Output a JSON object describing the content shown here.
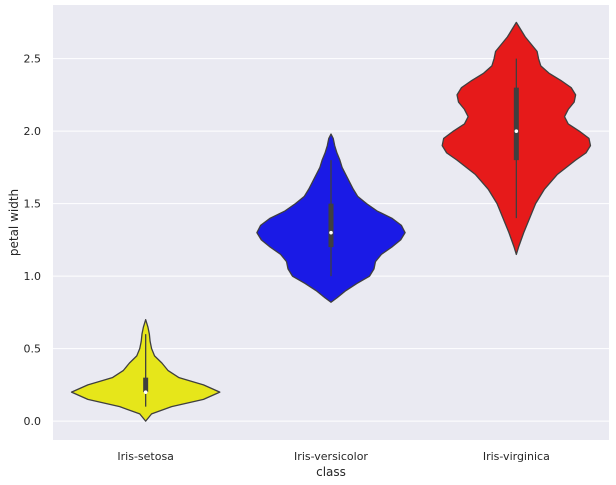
{
  "chart_data": {
    "type": "violin",
    "xlabel": "class",
    "ylabel": "petal width",
    "ylim": [
      -0.13,
      2.87
    ],
    "yticks": [
      0.0,
      0.5,
      1.0,
      1.5,
      2.0,
      2.5
    ],
    "ytick_labels": [
      "0.0",
      "0.5",
      "1.0",
      "1.5",
      "2.0",
      "2.5"
    ],
    "grid": true,
    "background_color": "#eaeaf2",
    "categories": [
      "Iris-setosa",
      "Iris-versicolor",
      "Iris-virginica"
    ],
    "series": [
      {
        "category": "Iris-setosa",
        "color": "#e6e61a",
        "min": 0.1,
        "q1": 0.2,
        "median": 0.2,
        "q3": 0.3,
        "max": 0.6,
        "density": [
          [
            0.0,
            0.0
          ],
          [
            0.05,
            0.08
          ],
          [
            0.1,
            0.35
          ],
          [
            0.15,
            0.78
          ],
          [
            0.2,
            1.0
          ],
          [
            0.25,
            0.78
          ],
          [
            0.3,
            0.45
          ],
          [
            0.35,
            0.3
          ],
          [
            0.4,
            0.22
          ],
          [
            0.45,
            0.12
          ],
          [
            0.5,
            0.08
          ],
          [
            0.55,
            0.06
          ],
          [
            0.6,
            0.05
          ],
          [
            0.65,
            0.03
          ],
          [
            0.7,
            0.0
          ]
        ]
      },
      {
        "category": "Iris-versicolor",
        "color": "#1a1ae6",
        "min": 1.0,
        "q1": 1.2,
        "median": 1.3,
        "q3": 1.5,
        "max": 1.8,
        "density": [
          [
            0.82,
            0.0
          ],
          [
            0.85,
            0.08
          ],
          [
            0.9,
            0.2
          ],
          [
            0.95,
            0.35
          ],
          [
            1.0,
            0.52
          ],
          [
            1.05,
            0.58
          ],
          [
            1.1,
            0.6
          ],
          [
            1.15,
            0.68
          ],
          [
            1.2,
            0.82
          ],
          [
            1.25,
            0.94
          ],
          [
            1.3,
            1.0
          ],
          [
            1.35,
            0.95
          ],
          [
            1.4,
            0.82
          ],
          [
            1.45,
            0.62
          ],
          [
            1.5,
            0.48
          ],
          [
            1.55,
            0.36
          ],
          [
            1.6,
            0.3
          ],
          [
            1.65,
            0.25
          ],
          [
            1.7,
            0.2
          ],
          [
            1.75,
            0.15
          ],
          [
            1.8,
            0.12
          ],
          [
            1.85,
            0.08
          ],
          [
            1.9,
            0.05
          ],
          [
            1.95,
            0.03
          ],
          [
            1.98,
            0.0
          ]
        ]
      },
      {
        "category": "Iris-virginica",
        "color": "#e61a1a",
        "min": 1.4,
        "q1": 1.8,
        "median": 2.0,
        "q3": 2.3,
        "max": 2.5,
        "density": [
          [
            1.15,
            0.0
          ],
          [
            1.2,
            0.03
          ],
          [
            1.3,
            0.1
          ],
          [
            1.4,
            0.18
          ],
          [
            1.5,
            0.26
          ],
          [
            1.6,
            0.38
          ],
          [
            1.7,
            0.55
          ],
          [
            1.8,
            0.8
          ],
          [
            1.85,
            0.94
          ],
          [
            1.9,
            1.0
          ],
          [
            1.95,
            0.98
          ],
          [
            2.0,
            0.85
          ],
          [
            2.05,
            0.7
          ],
          [
            2.1,
            0.65
          ],
          [
            2.15,
            0.7
          ],
          [
            2.2,
            0.78
          ],
          [
            2.25,
            0.8
          ],
          [
            2.3,
            0.74
          ],
          [
            2.35,
            0.6
          ],
          [
            2.4,
            0.44
          ],
          [
            2.45,
            0.33
          ],
          [
            2.5,
            0.3
          ],
          [
            2.55,
            0.28
          ],
          [
            2.6,
            0.2
          ],
          [
            2.65,
            0.12
          ],
          [
            2.7,
            0.06
          ],
          [
            2.75,
            0.0
          ]
        ]
      }
    ]
  }
}
